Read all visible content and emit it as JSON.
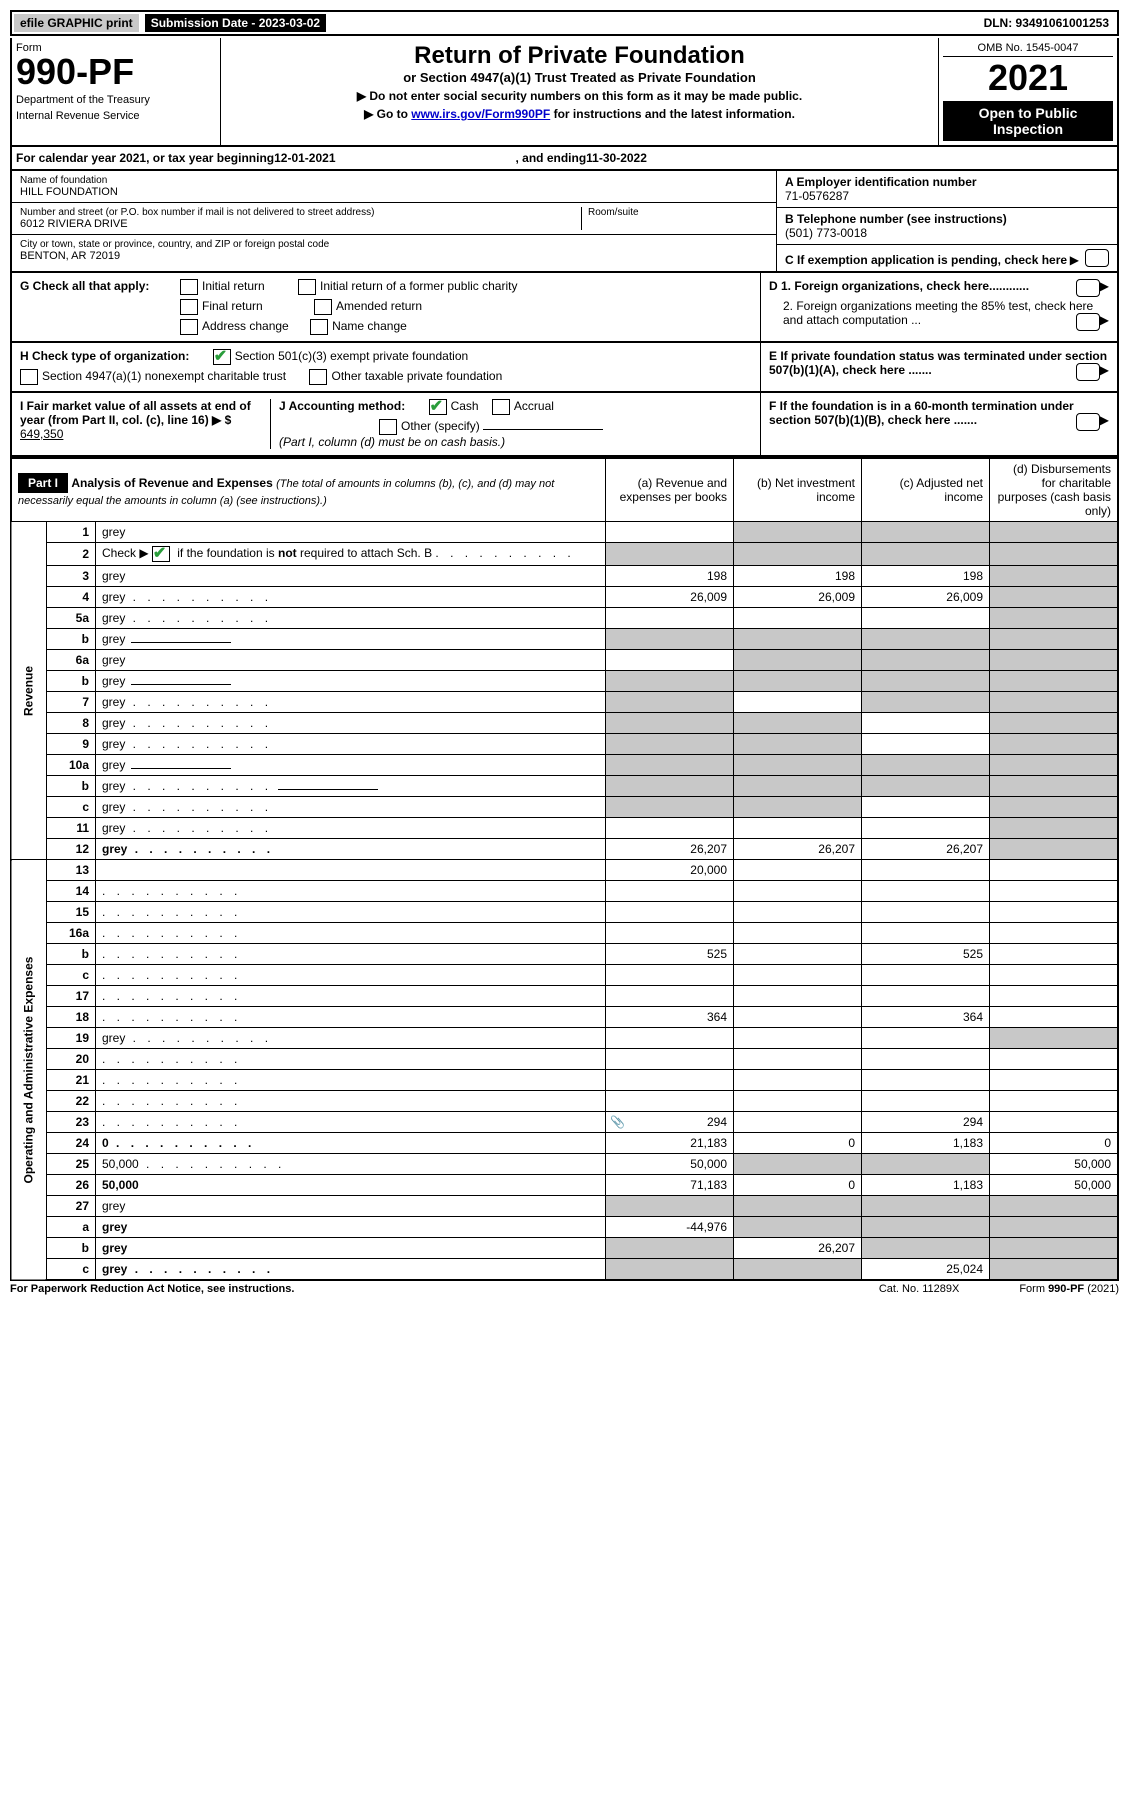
{
  "topbar": {
    "efile": "efile GRAPHIC print",
    "submission_date_label": "Submission Date - 2023-03-02",
    "dln": "DLN: 93491061001253"
  },
  "header": {
    "form_label": "Form",
    "form_no": "990-PF",
    "dept1": "Department of the Treasury",
    "dept2": "Internal Revenue Service",
    "title": "Return of Private Foundation",
    "subtitle": "or Section 4947(a)(1) Trust Treated as Private Foundation",
    "note1": "▶ Do not enter social security numbers on this form as it may be made public.",
    "note2_pre": "▶ Go to ",
    "note2_link": "www.irs.gov/Form990PF",
    "note2_post": " for instructions and the latest information.",
    "omb": "OMB No. 1545-0047",
    "year": "2021",
    "open": "Open to Public Inspection"
  },
  "calendar": {
    "text_pre": "For calendar year 2021, or tax year beginning ",
    "begin": "12-01-2021",
    "text_mid": " , and ending ",
    "end": "11-30-2022"
  },
  "info": {
    "name_label": "Name of foundation",
    "name": "HILL FOUNDATION",
    "addr_label": "Number and street (or P.O. box number if mail is not delivered to street address)",
    "addr": "6012 RIVIERA DRIVE",
    "room_label": "Room/suite",
    "city_label": "City or town, state or province, country, and ZIP or foreign postal code",
    "city": "BENTON, AR  72019",
    "a_label": "A Employer identification number",
    "a_val": "71-0576287",
    "b_label": "B Telephone number (see instructions)",
    "b_val": "(501) 773-0018",
    "c_label": "C If exemption application is pending, check here"
  },
  "checks": {
    "g_label": "G Check all that apply:",
    "g_opts": [
      "Initial return",
      "Initial return of a former public charity",
      "Final return",
      "Amended return",
      "Address change",
      "Name change"
    ],
    "h_label": "H Check type of organization:",
    "h1": "Section 501(c)(3) exempt private foundation",
    "h2": "Section 4947(a)(1) nonexempt charitable trust",
    "h3": "Other taxable private foundation",
    "i_label": "I Fair market value of all assets at end of year (from Part II, col. (c), line 16) ▶ $",
    "i_val": "649,350",
    "j_label": "J Accounting method:",
    "j_cash": "Cash",
    "j_accrual": "Accrual",
    "j_other": "Other (specify)",
    "j_note": "(Part I, column (d) must be on cash basis.)",
    "d1": "D 1. Foreign organizations, check here............",
    "d2": "2. Foreign organizations meeting the 85% test, check here and attach computation ...",
    "e": "E  If private foundation status was terminated under section 507(b)(1)(A), check here .......",
    "f": "F  If the foundation is in a 60-month termination under section 507(b)(1)(B), check here .......",
    "arrow": "▶"
  },
  "part1": {
    "label": "Part I",
    "title": "Analysis of Revenue and Expenses ",
    "title_note": "(The total of amounts in columns (b), (c), and (d) may not necessarily equal the amounts in column (a) (see instructions).)",
    "cols": {
      "a": "(a) Revenue and expenses per books",
      "b": "(b) Net investment income",
      "c": "(c) Adjusted net income",
      "d": "(d) Disbursements for charitable purposes (cash basis only)"
    }
  },
  "side_revenue": "Revenue",
  "side_expenses": "Operating and Administrative Expenses",
  "rows": [
    {
      "n": "1",
      "d": "grey",
      "a": "",
      "b": "grey",
      "c": "grey"
    },
    {
      "n": "2",
      "d": "grey",
      "a": "grey",
      "b": "grey",
      "c": "grey",
      "dots": true
    },
    {
      "n": "3",
      "d": "grey",
      "a": "198",
      "b": "198",
      "c": "198"
    },
    {
      "n": "4",
      "d": "grey",
      "a": "26,009",
      "b": "26,009",
      "c": "26,009",
      "dots": true
    },
    {
      "n": "5a",
      "d": "grey",
      "a": "",
      "b": "",
      "c": "",
      "dots": true
    },
    {
      "n": "b",
      "d": "grey",
      "a": "grey",
      "b": "grey",
      "c": "grey",
      "inline_under": true
    },
    {
      "n": "6a",
      "d": "grey",
      "a": "",
      "b": "grey",
      "c": "grey"
    },
    {
      "n": "b",
      "d": "grey",
      "a": "grey",
      "b": "grey",
      "c": "grey",
      "inline_under": true
    },
    {
      "n": "7",
      "d": "grey",
      "a": "grey",
      "b": "",
      "c": "grey",
      "dots": true
    },
    {
      "n": "8",
      "d": "grey",
      "a": "grey",
      "b": "grey",
      "c": "",
      "dots": true
    },
    {
      "n": "9",
      "d": "grey",
      "a": "grey",
      "b": "grey",
      "c": "",
      "dots": true
    },
    {
      "n": "10a",
      "d": "grey",
      "a": "grey",
      "b": "grey",
      "c": "grey",
      "inline_under": true
    },
    {
      "n": "b",
      "d": "grey",
      "a": "grey",
      "b": "grey",
      "c": "grey",
      "inline_under": true,
      "dots": true
    },
    {
      "n": "c",
      "d": "grey",
      "a": "grey",
      "b": "grey",
      "c": "",
      "dots": true
    },
    {
      "n": "11",
      "d": "grey",
      "a": "",
      "b": "",
      "c": "",
      "dots": true
    },
    {
      "n": "12",
      "d": "grey",
      "a": "26,207",
      "b": "26,207",
      "c": "26,207",
      "bold": true,
      "dots": true
    },
    {
      "n": "13",
      "d": "",
      "a": "20,000",
      "b": "",
      "c": ""
    },
    {
      "n": "14",
      "d": "",
      "a": "",
      "b": "",
      "c": "",
      "dots": true
    },
    {
      "n": "15",
      "d": "",
      "a": "",
      "b": "",
      "c": "",
      "dots": true
    },
    {
      "n": "16a",
      "d": "",
      "a": "",
      "b": "",
      "c": "",
      "dots": true
    },
    {
      "n": "b",
      "d": "",
      "a": "525",
      "b": "",
      "c": "525",
      "dots": true
    },
    {
      "n": "c",
      "d": "",
      "a": "",
      "b": "",
      "c": "",
      "dots": true
    },
    {
      "n": "17",
      "d": "",
      "a": "",
      "b": "",
      "c": "",
      "dots": true
    },
    {
      "n": "18",
      "d": "",
      "a": "364",
      "b": "",
      "c": "364",
      "dots": true
    },
    {
      "n": "19",
      "d": "grey",
      "a": "",
      "b": "",
      "c": "",
      "dots": true
    },
    {
      "n": "20",
      "d": "",
      "a": "",
      "b": "",
      "c": "",
      "dots": true
    },
    {
      "n": "21",
      "d": "",
      "a": "",
      "b": "",
      "c": "",
      "dots": true
    },
    {
      "n": "22",
      "d": "",
      "a": "",
      "b": "",
      "c": "",
      "dots": true
    },
    {
      "n": "23",
      "d": "",
      "a": "294",
      "b": "",
      "c": "294",
      "dots": true,
      "clip": true
    },
    {
      "n": "24",
      "d": "0",
      "a": "21,183",
      "b": "0",
      "c": "1,183",
      "bold": true,
      "dots": true
    },
    {
      "n": "25",
      "d": "50,000",
      "a": "50,000",
      "b": "grey",
      "c": "grey",
      "dots": true
    },
    {
      "n": "26",
      "d": "50,000",
      "a": "71,183",
      "b": "0",
      "c": "1,183",
      "bold": true
    },
    {
      "n": "27",
      "d": "grey",
      "a": "grey",
      "b": "grey",
      "c": "grey"
    },
    {
      "n": "a",
      "d": "grey",
      "a": "-44,976",
      "b": "grey",
      "c": "grey",
      "bold": true
    },
    {
      "n": "b",
      "d": "grey",
      "a": "grey",
      "b": "26,207",
      "c": "grey",
      "bold": true
    },
    {
      "n": "c",
      "d": "grey",
      "a": "grey",
      "b": "grey",
      "c": "25,024",
      "bold": true,
      "dots": true
    }
  ],
  "footer": {
    "left": "For Paperwork Reduction Act Notice, see instructions.",
    "mid": "Cat. No. 11289X",
    "right": "Form 990-PF (2021)"
  },
  "colors": {
    "grey_bg": "#c8c8c8",
    "black": "#000000",
    "check_green": "#2a9d3b",
    "link": "#0000cc"
  }
}
